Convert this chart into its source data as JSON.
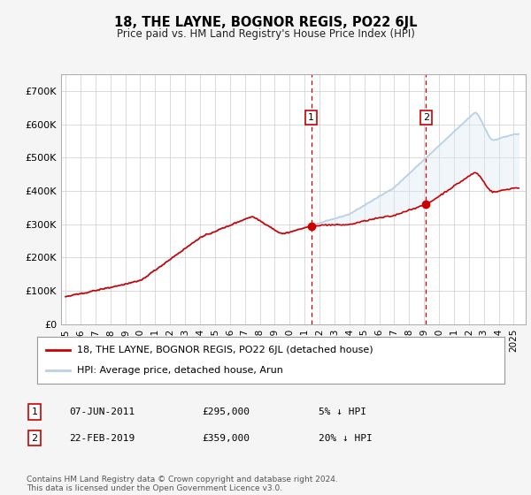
{
  "title": "18, THE LAYNE, BOGNOR REGIS, PO22 6JL",
  "subtitle": "Price paid vs. HM Land Registry's House Price Index (HPI)",
  "ylabel_ticks": [
    "£0",
    "£100K",
    "£200K",
    "£300K",
    "£400K",
    "£500K",
    "£600K",
    "£700K"
  ],
  "ytick_values": [
    0,
    100000,
    200000,
    300000,
    400000,
    500000,
    600000,
    700000
  ],
  "ylim": [
    0,
    750000
  ],
  "xlim_start": 1994.7,
  "xlim_end": 2025.8,
  "hpi_color": "#b8d0e8",
  "hpi_fill_color": "#ddeaf5",
  "price_color": "#cc0000",
  "purchase1_date": 2011.44,
  "purchase1_price": 295000,
  "purchase2_date": 2019.13,
  "purchase2_price": 359000,
  "legend_line1": "18, THE LAYNE, BOGNOR REGIS, PO22 6JL (detached house)",
  "legend_line2": "HPI: Average price, detached house, Arun",
  "annot1_date": "07-JUN-2011",
  "annot1_price": "£295,000",
  "annot1_pct": "5% ↓ HPI",
  "annot2_date": "22-FEB-2019",
  "annot2_price": "£359,000",
  "annot2_pct": "20% ↓ HPI",
  "footer": "Contains HM Land Registry data © Crown copyright and database right 2024.\nThis data is licensed under the Open Government Licence v3.0.",
  "bg_color": "#f5f5f5",
  "plot_bg_color": "#ffffff",
  "grid_color": "#cccccc"
}
